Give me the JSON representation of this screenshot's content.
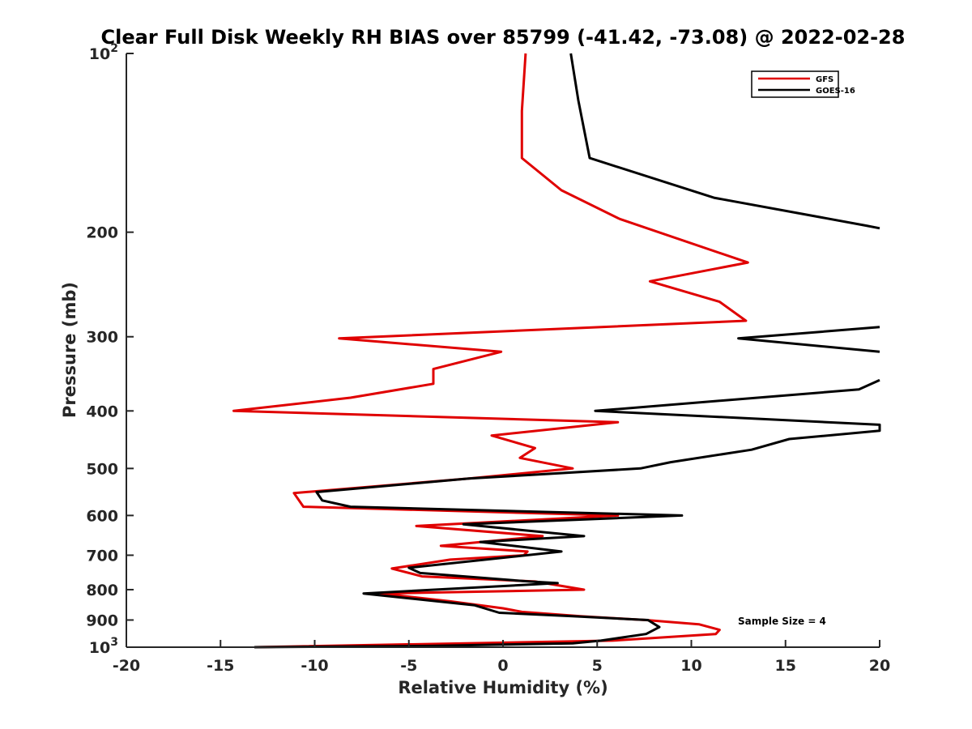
{
  "chart_data": {
    "type": "line",
    "title": "Clear Full Disk Weekly RH BIAS over 85799 (-41.42, -73.08) @ 2022-02-28",
    "xlabel": "Relative Humidity (%)",
    "ylabel": "Pressure (mb)",
    "xlim": [
      -20,
      20
    ],
    "ylim": [
      100,
      1000
    ],
    "yscale": "log",
    "y_reversed": true,
    "x_ticks": [
      "-20",
      "-15",
      "-10",
      "-5",
      "0",
      "5",
      "10",
      "15",
      "20"
    ],
    "y_ticks": [
      {
        "value": 100,
        "base": "10",
        "exp": "2"
      },
      {
        "value": 200,
        "label": "200"
      },
      {
        "value": 300,
        "label": "300"
      },
      {
        "value": 400,
        "label": "400"
      },
      {
        "value": 500,
        "label": "500"
      },
      {
        "value": 600,
        "label": "600"
      },
      {
        "value": 700,
        "label": "700"
      },
      {
        "value": 800,
        "label": "800"
      },
      {
        "value": 900,
        "label": "900"
      },
      {
        "value": 1000,
        "base": "10",
        "exp": "3"
      }
    ],
    "legend_position": "top-right",
    "annotation": "Sample Size = 4",
    "series": [
      {
        "name": "GFS",
        "color": "#e00000",
        "points": [
          [
            1.2,
            100
          ],
          [
            1.0,
            125
          ],
          [
            1.0,
            150
          ],
          [
            3.1,
            170
          ],
          [
            6.2,
            190
          ],
          [
            13.0,
            225
          ],
          [
            7.8,
            242
          ],
          [
            11.5,
            262
          ],
          [
            12.9,
            282
          ],
          [
            -8.7,
            302
          ],
          [
            -0.1,
            318
          ],
          [
            -3.7,
            340
          ],
          [
            -3.7,
            360
          ],
          [
            -8.1,
            380
          ],
          [
            -14.3,
            400
          ],
          [
            6.1,
            418
          ],
          [
            -0.6,
            440
          ],
          [
            1.7,
            462
          ],
          [
            0.9,
            480
          ],
          [
            3.7,
            500
          ],
          [
            -1.8,
            520
          ],
          [
            -11.1,
            550
          ],
          [
            -10.6,
            580
          ],
          [
            6.1,
            600
          ],
          [
            -4.6,
            625
          ],
          [
            2.1,
            650
          ],
          [
            -3.3,
            675
          ],
          [
            1.3,
            690
          ],
          [
            1.1,
            700
          ],
          [
            -2.8,
            712
          ],
          [
            -5.9,
            737
          ],
          [
            -4.3,
            760
          ],
          [
            1.7,
            775
          ],
          [
            4.3,
            800
          ],
          [
            -6.5,
            812
          ],
          [
            -2.8,
            837
          ],
          [
            0.0,
            860
          ],
          [
            1.0,
            872
          ],
          [
            4.1,
            887
          ],
          [
            7.6,
            900
          ],
          [
            10.4,
            915
          ],
          [
            11.5,
            935
          ],
          [
            11.3,
            950
          ],
          [
            5.8,
            975
          ],
          [
            -13.2,
            1000
          ]
        ]
      },
      {
        "name": "GOES-16",
        "color": "#000000",
        "points": [
          [
            3.6,
            100
          ],
          [
            4.0,
            120
          ],
          [
            4.6,
            150
          ],
          [
            11.2,
            175
          ],
          [
            19.3,
            195
          ],
          [
            20.0,
            197
          ],
          [
            null,
            null
          ],
          [
            20.0,
            289
          ],
          [
            12.5,
            302
          ],
          [
            20.0,
            318
          ],
          [
            null,
            null
          ],
          [
            20.0,
            355
          ],
          [
            18.9,
            368
          ],
          [
            4.9,
            400
          ],
          [
            20.0,
            422
          ],
          [
            20.0,
            432
          ],
          [
            15.2,
            446
          ],
          [
            13.2,
            465
          ],
          [
            8.9,
            488
          ],
          [
            7.3,
            500
          ],
          [
            -1.8,
            520
          ],
          [
            -9.9,
            548
          ],
          [
            -9.6,
            566
          ],
          [
            -8.1,
            580
          ],
          [
            9.5,
            600
          ],
          [
            -2.1,
            621
          ],
          [
            4.3,
            650
          ],
          [
            -1.2,
            665
          ],
          [
            3.1,
            690
          ],
          [
            -5.0,
            735
          ],
          [
            -4.4,
            750
          ],
          [
            1.4,
            775
          ],
          [
            2.9,
            780
          ],
          [
            -7.4,
            812
          ],
          [
            -1.5,
            850
          ],
          [
            -0.2,
            875
          ],
          [
            3.7,
            887
          ],
          [
            7.7,
            900
          ],
          [
            8.3,
            925
          ],
          [
            7.6,
            950
          ],
          [
            5.2,
            975
          ],
          [
            3.7,
            985
          ],
          [
            -3.8,
            995
          ],
          [
            -13.2,
            1000
          ]
        ]
      }
    ]
  }
}
